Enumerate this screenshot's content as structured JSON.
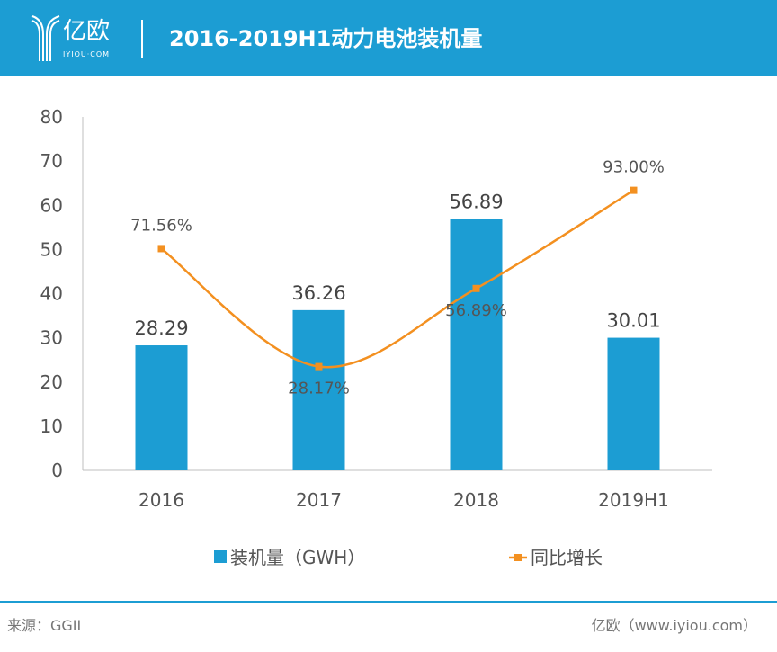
{
  "header": {
    "logo_text": "亿欧",
    "logo_sub": "IYIOU·COM",
    "title": "2016-2019H1动力电池装机量"
  },
  "colors": {
    "header": "#1c9dd3",
    "bar": "#1c9dd3",
    "line": "#f39020"
  },
  "chart_data": {
    "type": "bar+line",
    "title": "2016-2019H1动力电池装机量",
    "categories": [
      "2016",
      "2017",
      "2018",
      "2019H1"
    ],
    "ylim": [
      0,
      80
    ],
    "yticks": [
      0,
      10,
      20,
      30,
      40,
      50,
      60,
      70,
      80
    ],
    "y2lim": [
      -10,
      120
    ],
    "grid": false,
    "legend": "bottom",
    "series": [
      {
        "name": "装机量（GWH）",
        "type": "bar",
        "values": [
          28.29,
          36.26,
          56.89,
          30.01
        ],
        "labels": [
          "28.29",
          "36.26",
          "56.89",
          "30.01"
        ]
      },
      {
        "name": "同比增长",
        "type": "line",
        "axis": "secondary",
        "values": [
          71.56,
          28.17,
          56.89,
          93.0
        ],
        "labels": [
          "71.56%",
          "28.17%",
          "56.89%",
          "93.00%"
        ]
      }
    ]
  },
  "footer": {
    "source": "来源：GGII",
    "site": "亿欧（www.iyiou.com）"
  }
}
